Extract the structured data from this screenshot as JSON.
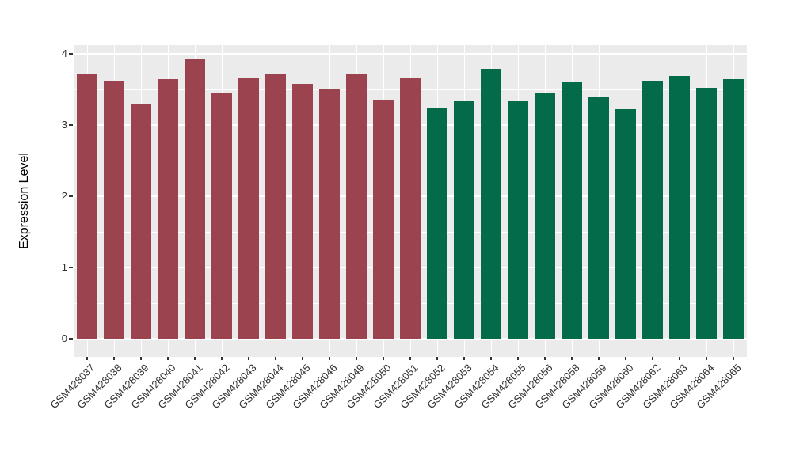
{
  "chart_data": {
    "type": "bar",
    "title": "",
    "xlabel": "",
    "ylabel": "Expression Level",
    "ylim": [
      0,
      4
    ],
    "yticks": [
      0,
      1,
      2,
      3,
      4
    ],
    "grid": true,
    "legend": "none",
    "categories": [
      "GSM428037",
      "GSM428038",
      "GSM428039",
      "GSM428040",
      "GSM428041",
      "GSM428042",
      "GSM428043",
      "GSM428044",
      "GSM428045",
      "GSM428046",
      "GSM428049",
      "GSM428050",
      "GSM428051",
      "GSM428052",
      "GSM428053",
      "GSM428054",
      "GSM428055",
      "GSM428056",
      "GSM428058",
      "GSM428059",
      "GSM428060",
      "GSM428062",
      "GSM428063",
      "GSM428064",
      "GSM428065"
    ],
    "values": [
      3.72,
      3.62,
      3.29,
      3.65,
      3.93,
      3.44,
      3.66,
      3.71,
      3.58,
      3.51,
      3.72,
      3.36,
      3.67,
      3.25,
      3.35,
      3.79,
      3.35,
      3.46,
      3.6,
      3.39,
      3.22,
      3.62,
      3.69,
      3.52,
      3.65
    ],
    "bar_group_of": [
      0,
      0,
      0,
      0,
      0,
      0,
      0,
      0,
      0,
      0,
      0,
      0,
      0,
      1,
      1,
      1,
      1,
      1,
      1,
      1,
      1,
      1,
      1,
      1,
      1
    ],
    "group_colors": [
      "#9b4450",
      "#046b4a"
    ],
    "panel_background": "#ebebeb",
    "gridline_color": "#ffffff",
    "axis_text_color": "#303030",
    "axis_title_color": "#000000"
  }
}
